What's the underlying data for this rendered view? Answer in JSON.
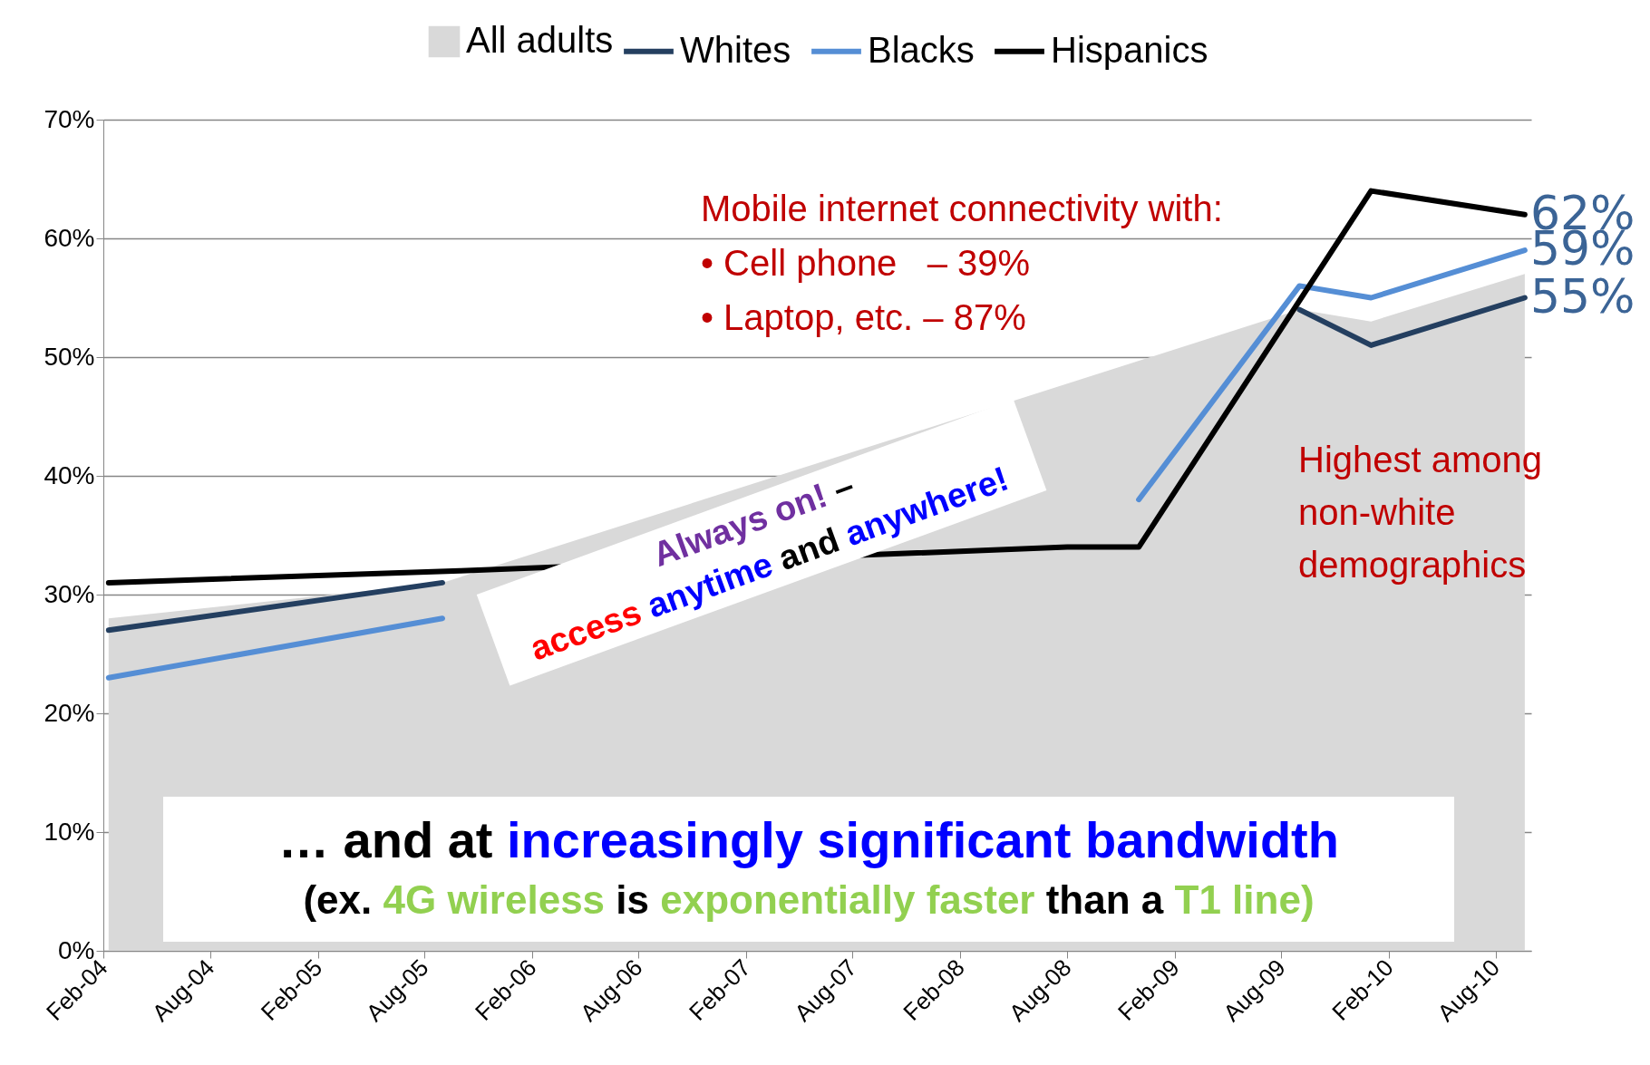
{
  "chart_data": {
    "type": "line",
    "x": [
      "2004-02-10",
      "2005-09",
      "2008-08",
      "2008-12",
      "2009-09",
      "2010-01",
      "2010-09-20"
    ],
    "xlim": [
      "2004-02",
      "2010-10"
    ],
    "xticks": [
      {
        "value": "2004-02",
        "label": "Feb-04"
      },
      {
        "value": "2004-08",
        "label": "Aug-04"
      },
      {
        "value": "2005-02",
        "label": "Feb-05"
      },
      {
        "value": "2005-08",
        "label": "Aug-05"
      },
      {
        "value": "2006-02",
        "label": "Feb-06"
      },
      {
        "value": "2006-08",
        "label": "Aug-06"
      },
      {
        "value": "2007-02",
        "label": "Feb-07"
      },
      {
        "value": "2007-08",
        "label": "Aug-07"
      },
      {
        "value": "2008-02",
        "label": "Feb-08"
      },
      {
        "value": "2008-08",
        "label": "Aug-08"
      },
      {
        "value": "2009-02",
        "label": "Feb-09"
      },
      {
        "value": "2009-08",
        "label": "Aug-09"
      },
      {
        "value": "2010-02",
        "label": "Feb-10"
      },
      {
        "value": "2010-08",
        "label": "Aug-10"
      }
    ],
    "ylim": [
      0,
      70
    ],
    "yticks": [
      {
        "value": 0,
        "label": "0%"
      },
      {
        "value": 10,
        "label": "10%"
      },
      {
        "value": 20,
        "label": "20%"
      },
      {
        "value": 30,
        "label": "30%"
      },
      {
        "value": 40,
        "label": "40%"
      },
      {
        "value": 50,
        "label": "50%"
      },
      {
        "value": 60,
        "label": "60%"
      },
      {
        "value": 70,
        "label": "70%"
      }
    ],
    "grid": "y",
    "legend": "top",
    "series": [
      {
        "name": "All adults",
        "type": "area",
        "color": "#d9d9d9",
        "values": [
          28,
          31,
          null,
          null,
          54,
          53,
          57
        ]
      },
      {
        "name": "Whites",
        "type": "line",
        "color": "#243f60",
        "values": [
          27,
          31,
          null,
          null,
          54,
          51,
          55
        ],
        "value_labels": [
          null,
          null,
          null,
          null,
          null,
          null,
          "55%"
        ]
      },
      {
        "name": "Blacks",
        "type": "line",
        "color": "#558ed5",
        "values": [
          23,
          28,
          null,
          38,
          56,
          55,
          59
        ],
        "value_labels": [
          null,
          null,
          null,
          null,
          null,
          null,
          "59%"
        ]
      },
      {
        "name": "Hispanics",
        "type": "line",
        "color": "#000000",
        "x": [
          "2004-02-10",
          "2005-10",
          "2008-08",
          "2008-12",
          "2010-01",
          "2010-09-20"
        ],
        "values": [
          31,
          32,
          34,
          34,
          64,
          62
        ],
        "value_labels": [
          null,
          null,
          null,
          null,
          null,
          "62%"
        ]
      }
    ],
    "annotations": [
      "Mobile internet connectivity with:",
      "• Cell phone   – 39%",
      "• Laptop, etc. – 87%",
      "Highest among non-white demographics",
      "Always on! – access anytime and anywhere!",
      "… and at increasingly significant bandwidth",
      "(ex. 4G wireless is exponentially faster than a T1 line)"
    ]
  }
}
